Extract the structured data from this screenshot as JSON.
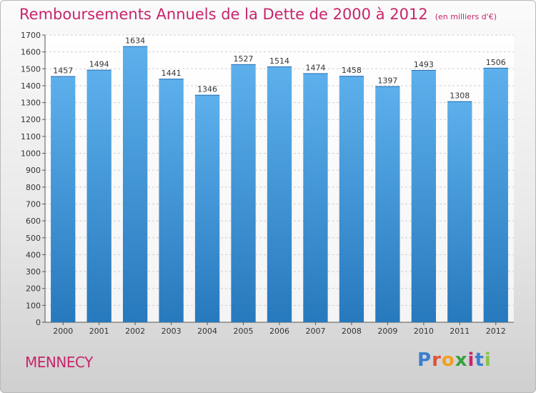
{
  "page": {
    "title": "Remboursements Annuels de la Dette de 2000 à 2012",
    "unit": "(en milliers d'€)",
    "commune": "MENNECY",
    "logo": {
      "letters": [
        "P",
        "r",
        "o",
        "x",
        "i",
        "t",
        "i"
      ],
      "colors": [
        "#3a7fd0",
        "#e0543a",
        "#f0a020",
        "#3aa040",
        "#c8246c",
        "#3a7fd0",
        "#8bc34a"
      ]
    }
  },
  "chart_data": {
    "type": "bar",
    "title": "Remboursements Annuels de la Dette de 2000 à 2012",
    "subtitle": "(en milliers d'€)",
    "categories": [
      "2000",
      "2001",
      "2002",
      "2003",
      "2004",
      "2005",
      "2006",
      "2007",
      "2008",
      "2009",
      "2010",
      "2011",
      "2012"
    ],
    "values": [
      1457,
      1494,
      1634,
      1441,
      1346,
      1527,
      1514,
      1474,
      1458,
      1397,
      1493,
      1308,
      1506
    ],
    "value_labels": [
      "1457",
      "1494",
      "1634",
      "1441",
      "1346",
      "1527",
      "1514",
      "1474",
      "1458",
      "1397",
      "1493",
      "1308",
      "1506"
    ],
    "yticks": [
      "0",
      "100",
      "200",
      "300",
      "400",
      "500",
      "600",
      "700",
      "800",
      "900",
      "1000",
      "1100",
      "1200",
      "1300",
      "1400",
      "1500",
      "1600",
      "1700"
    ],
    "ylim": [
      0,
      1700
    ],
    "grid": true,
    "bar_color_top": "#5db0ec",
    "bar_color_bottom": "#2779bd"
  }
}
